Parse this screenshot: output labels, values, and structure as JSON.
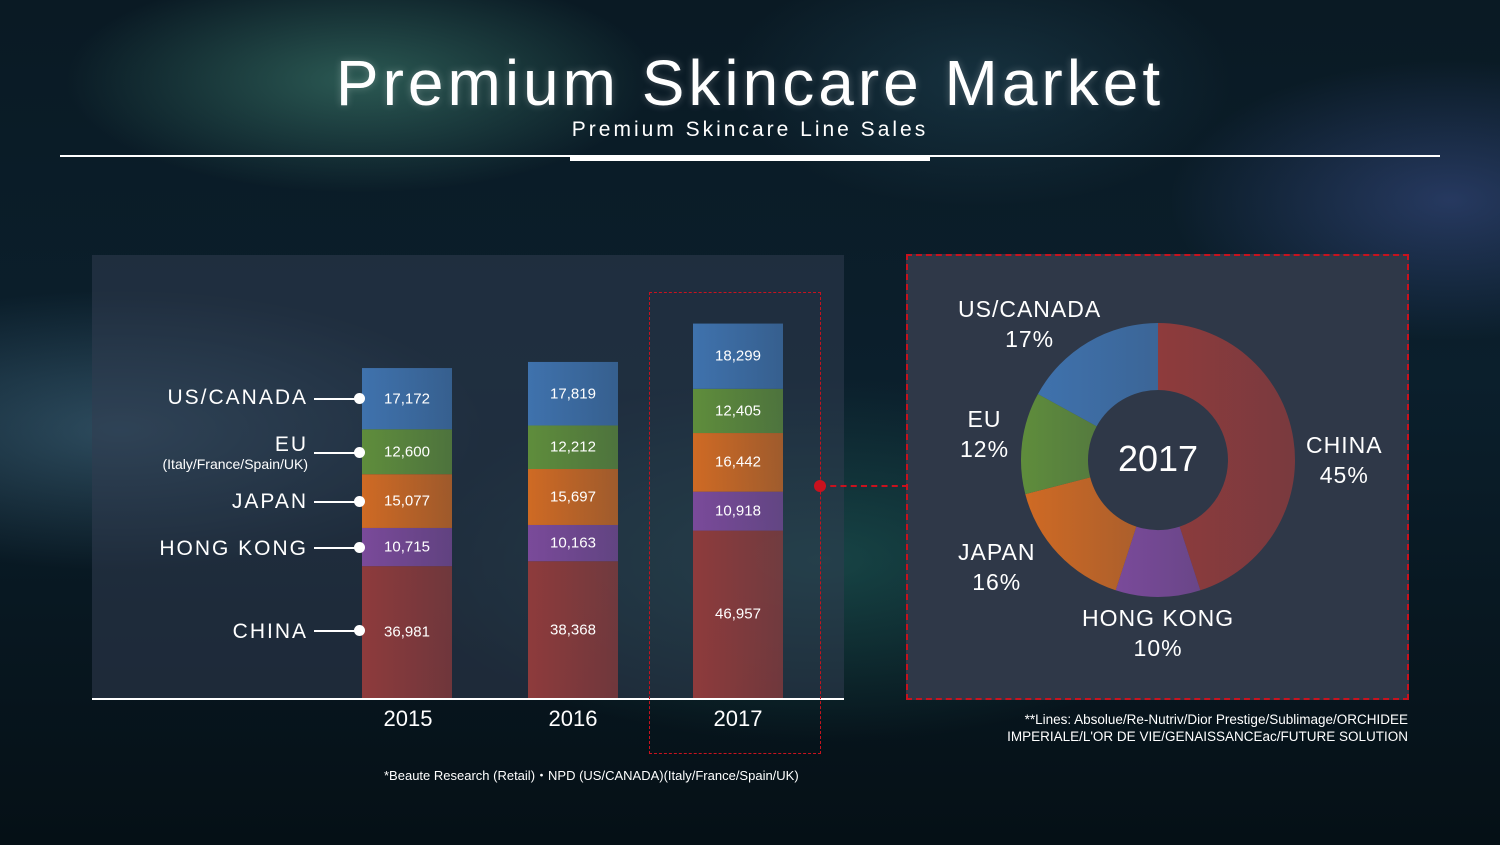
{
  "header": {
    "title": "Premium Skincare Market",
    "subtitle": "Premium Skincare Line Sales"
  },
  "chart_data": [
    {
      "type": "bar",
      "stacked": true,
      "categories": [
        "2015",
        "2016",
        "2017"
      ],
      "series": [
        {
          "name": "CHINA",
          "values": [
            36981,
            38368,
            46957
          ],
          "labels": [
            "36,981",
            "38,368",
            "46,957"
          ],
          "color": "#8e3b3c"
        },
        {
          "name": "HONG KONG",
          "values": [
            10715,
            10163,
            10918
          ],
          "labels": [
            "10,715",
            "10,163",
            "10,918"
          ],
          "color": "#7a4a9a"
        },
        {
          "name": "JAPAN",
          "values": [
            15077,
            15697,
            16442
          ],
          "labels": [
            "15,077",
            "15,697",
            "16,442"
          ],
          "color": "#cf6a24"
        },
        {
          "name": "EU",
          "values": [
            12600,
            12212,
            12405
          ],
          "labels": [
            "12,600",
            "12,212",
            "12,405"
          ],
          "color": "#5f8d3c"
        },
        {
          "name": "US/CANADA",
          "values": [
            17172,
            17819,
            18299
          ],
          "labels": [
            "17,172",
            "17,819",
            "18,299"
          ],
          "color": "#3f72ad"
        }
      ],
      "series_sublabels": {
        "EU": "(Italy/France/Spain/UK)"
      },
      "highlight_category": "2017",
      "grid": false
    },
    {
      "type": "pie",
      "variant": "donut",
      "center_label": "2017",
      "slices": [
        {
          "name": "CHINA",
          "value": 45,
          "label": "45%",
          "color": "#8e3b3c"
        },
        {
          "name": "HONG KONG",
          "value": 10,
          "label": "10%",
          "color": "#7a4a9a"
        },
        {
          "name": "JAPAN",
          "value": 16,
          "label": "16%",
          "color": "#cf6a24"
        },
        {
          "name": "EU",
          "value": 12,
          "label": "12%",
          "color": "#5f8d3c"
        },
        {
          "name": "US/CANADA",
          "value": 17,
          "label": "17%",
          "color": "#3f72ad"
        }
      ]
    }
  ],
  "notes": {
    "source": "*Beaute Research (Retail)・NPD (US/CANADA)(Italy/France/Spain/UK)",
    "lines_1": "**Lines: Absolue/Re-Nutriv/Dior Prestige/Sublimage/ORCHIDEE",
    "lines_2": "IMPERIALE/L'OR DE VIE/GENAISSANCEac/FUTURE SOLUTION"
  },
  "colors": {
    "highlight": "#c8121e",
    "panel": "#2f3848"
  }
}
